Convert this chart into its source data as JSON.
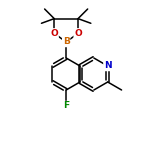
{
  "background_color": "#ffffff",
  "bond_color": "#000000",
  "atom_colors": {
    "B": "#cc6600",
    "O": "#cc0000",
    "N": "#0000cc",
    "F": "#008800",
    "C": "#000000"
  },
  "figsize": [
    1.52,
    1.52
  ],
  "dpi": 100,
  "lw": 1.1,
  "bl": 16.0
}
